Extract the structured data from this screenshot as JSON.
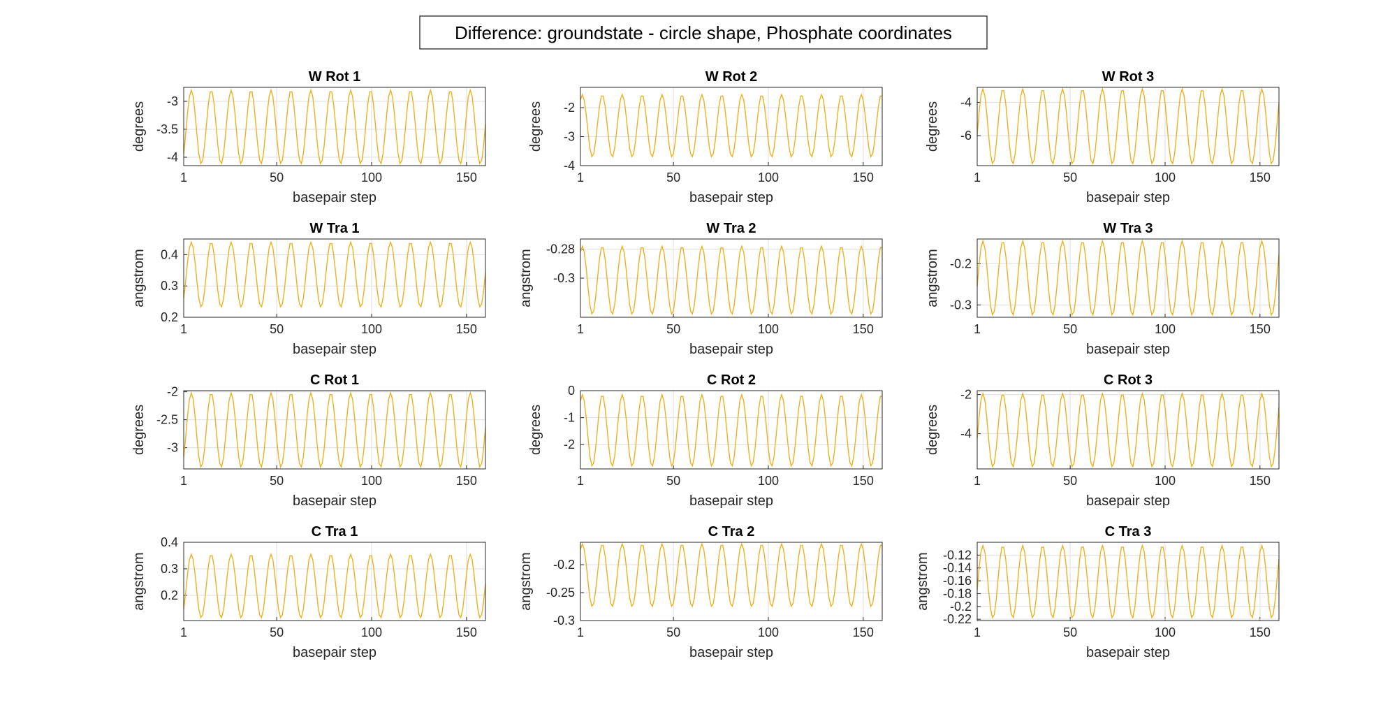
{
  "figure": {
    "suptitle": "Difference: groundstate - circle shape, Phosphate coordinates",
    "series_color": "#EDB120",
    "grid": true
  },
  "chart_data": [
    {
      "type": "line",
      "title": "W Rot 1",
      "xlabel": "basepair step",
      "ylabel": "degrees",
      "xlim": [
        1,
        160
      ],
      "xticks": [
        1,
        50,
        100,
        150
      ],
      "ylim": [
        -4.15,
        -2.75
      ],
      "yticks": [
        -4,
        -3.5,
        -3
      ],
      "period": 10.5,
      "phase": 5,
      "y_high": -2.8,
      "y_low": -4.12,
      "samples": 160
    },
    {
      "type": "line",
      "title": "W Rot 2",
      "xlabel": "basepair step",
      "ylabel": "degrees",
      "xlim": [
        1,
        160
      ],
      "xticks": [
        1,
        50,
        100,
        150
      ],
      "ylim": [
        -4,
        -1.3
      ],
      "yticks": [
        -4,
        -3,
        -2
      ],
      "period": 10.5,
      "phase": 2,
      "y_high": -1.55,
      "y_low": -3.7,
      "samples": 160
    },
    {
      "type": "line",
      "title": "W Rot 3",
      "xlabel": "basepair step",
      "ylabel": "degrees",
      "xlim": [
        1,
        160
      ],
      "xticks": [
        1,
        50,
        100,
        150
      ],
      "ylim": [
        -7.8,
        -3.1
      ],
      "yticks": [
        -6,
        -4
      ],
      "period": 10.5,
      "phase": 4,
      "y_high": -3.2,
      "y_low": -7.7,
      "samples": 160
    },
    {
      "type": "line",
      "title": "W Tra 1",
      "xlabel": "basepair step",
      "ylabel": "angstrom",
      "xlim": [
        1,
        160
      ],
      "xticks": [
        1,
        50,
        100,
        150
      ],
      "ylim": [
        0.2,
        0.45
      ],
      "yticks": [
        0.2,
        0.3,
        0.4
      ],
      "period": 10.5,
      "phase": 5,
      "y_high": 0.44,
      "y_low": 0.232,
      "samples": 160
    },
    {
      "type": "line",
      "title": "W Tra 2",
      "xlabel": "basepair step",
      "ylabel": "angstrom",
      "xlim": [
        1,
        160
      ],
      "xticks": [
        1,
        50,
        100,
        150
      ],
      "ylim": [
        -0.327,
        -0.273
      ],
      "yticks": [
        -0.3,
        -0.28
      ],
      "period": 10.5,
      "phase": 2,
      "y_high": -0.278,
      "y_low": -0.325,
      "samples": 160
    },
    {
      "type": "line",
      "title": "W Tra 3",
      "xlabel": "basepair step",
      "ylabel": "angstrom",
      "xlim": [
        1,
        160
      ],
      "xticks": [
        1,
        50,
        100,
        150
      ],
      "ylim": [
        -0.33,
        -0.14
      ],
      "yticks": [
        -0.3,
        -0.2
      ],
      "period": 10.5,
      "phase": 4,
      "y_high": -0.145,
      "y_low": -0.325,
      "samples": 160
    },
    {
      "type": "line",
      "title": "C Rot 1",
      "xlabel": "basepair step",
      "ylabel": "degrees",
      "xlim": [
        1,
        160
      ],
      "xticks": [
        1,
        50,
        100,
        150
      ],
      "ylim": [
        -3.38,
        -1.98
      ],
      "yticks": [
        -3,
        -2.5,
        -2
      ],
      "period": 10.5,
      "phase": 5,
      "y_high": -2.02,
      "y_low": -3.35,
      "samples": 160
    },
    {
      "type": "line",
      "title": "C Rot 2",
      "xlabel": "basepair step",
      "ylabel": "degrees",
      "xlim": [
        1,
        160
      ],
      "xticks": [
        1,
        50,
        100,
        150
      ],
      "ylim": [
        -2.9,
        0
      ],
      "yticks": [
        -2,
        -1,
        0
      ],
      "period": 10.5,
      "phase": 2,
      "y_high": -0.15,
      "y_low": -2.8,
      "samples": 160
    },
    {
      "type": "line",
      "title": "C Rot 3",
      "xlabel": "basepair step",
      "ylabel": "degrees",
      "xlim": [
        1,
        160
      ],
      "xticks": [
        1,
        50,
        100,
        150
      ],
      "ylim": [
        -5.8,
        -1.8
      ],
      "yticks": [
        -4,
        -2
      ],
      "period": 10.5,
      "phase": 4,
      "y_high": -1.95,
      "y_low": -5.7,
      "samples": 160
    },
    {
      "type": "line",
      "title": "C Tra 1",
      "xlabel": "basepair step",
      "ylabel": "angstrom",
      "xlim": [
        1,
        160
      ],
      "xticks": [
        1,
        50,
        100,
        150
      ],
      "ylim": [
        0.105,
        0.4
      ],
      "yticks": [
        0.2,
        0.3,
        0.4
      ],
      "period": 10.5,
      "phase": 5,
      "y_high": 0.355,
      "y_low": 0.115,
      "samples": 160
    },
    {
      "type": "line",
      "title": "C Tra 2",
      "xlabel": "basepair step",
      "ylabel": "angstrom",
      "xlim": [
        1,
        160
      ],
      "xticks": [
        1,
        50,
        100,
        150
      ],
      "ylim": [
        -0.3,
        -0.16
      ],
      "yticks": [
        -0.3,
        -0.25,
        -0.2
      ],
      "period": 10.5,
      "phase": 2,
      "y_high": -0.163,
      "y_low": -0.275,
      "samples": 160
    },
    {
      "type": "line",
      "title": "C Tra 3",
      "xlabel": "basepair step",
      "ylabel": "angstrom",
      "xlim": [
        1,
        160
      ],
      "xticks": [
        1,
        50,
        100,
        150
      ],
      "ylim": [
        -0.222,
        -0.1
      ],
      "yticks": [
        -0.22,
        -0.2,
        -0.18,
        -0.16,
        -0.14,
        -0.12
      ],
      "period": 10.5,
      "phase": 4,
      "y_high": -0.105,
      "y_low": -0.218,
      "samples": 160
    }
  ]
}
